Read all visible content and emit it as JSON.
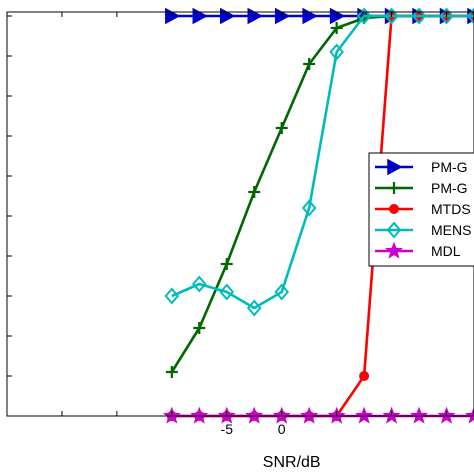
{
  "chart_data": {
    "type": "line",
    "xlabel": "SNR/dB",
    "xlim": [
      -25,
      17.5
    ],
    "ylim": [
      0,
      1.01
    ],
    "x_ticks": [
      -20,
      -15,
      -10,
      -5,
      0,
      5,
      10,
      15
    ],
    "x_tick_labels": [
      "",
      "",
      "",
      "-5",
      "0",
      "",
      "",
      ""
    ],
    "y_ticks": [
      0.1,
      0.2,
      0.3,
      0.4,
      0.5,
      0.6,
      0.7,
      0.8,
      0.9,
      1.0
    ],
    "x": [
      -10,
      -7.5,
      -5,
      -2.5,
      0,
      2.5,
      5,
      7.5,
      10,
      12.5,
      15,
      17.5
    ],
    "series": [
      {
        "name": "PM-G",
        "color": "#0000cc",
        "marker": "triangle-right",
        "values": [
          1.0,
          1.0,
          1.0,
          1.0,
          1.0,
          1.0,
          1.0,
          1.0,
          1.0,
          1.0,
          1.0,
          1.0
        ]
      },
      {
        "name": "PM-G",
        "color": "#006600",
        "marker": "plus",
        "values": [
          0.11,
          0.22,
          0.38,
          0.56,
          0.72,
          0.88,
          0.97,
          0.995,
          1.0,
          1.0,
          1.0,
          1.0
        ]
      },
      {
        "name": "MTDS",
        "color": "#ff0000",
        "marker": "circle",
        "values": [
          0,
          0,
          0,
          0,
          0,
          0,
          0,
          0.1,
          1.0,
          1.0,
          1.0,
          1.0
        ]
      },
      {
        "name": "MENS",
        "color": "#00bbbb",
        "marker": "diamond",
        "values": [
          0.3,
          0.33,
          0.31,
          0.27,
          0.31,
          0.52,
          0.91,
          1.0,
          1.0,
          1.0,
          1.0,
          1.0
        ]
      },
      {
        "name": "MDL",
        "color": "#cc00cc",
        "marker": "star",
        "values": [
          0,
          0,
          0,
          0,
          0,
          0,
          0,
          0,
          0,
          0,
          0,
          0
        ]
      }
    ]
  }
}
